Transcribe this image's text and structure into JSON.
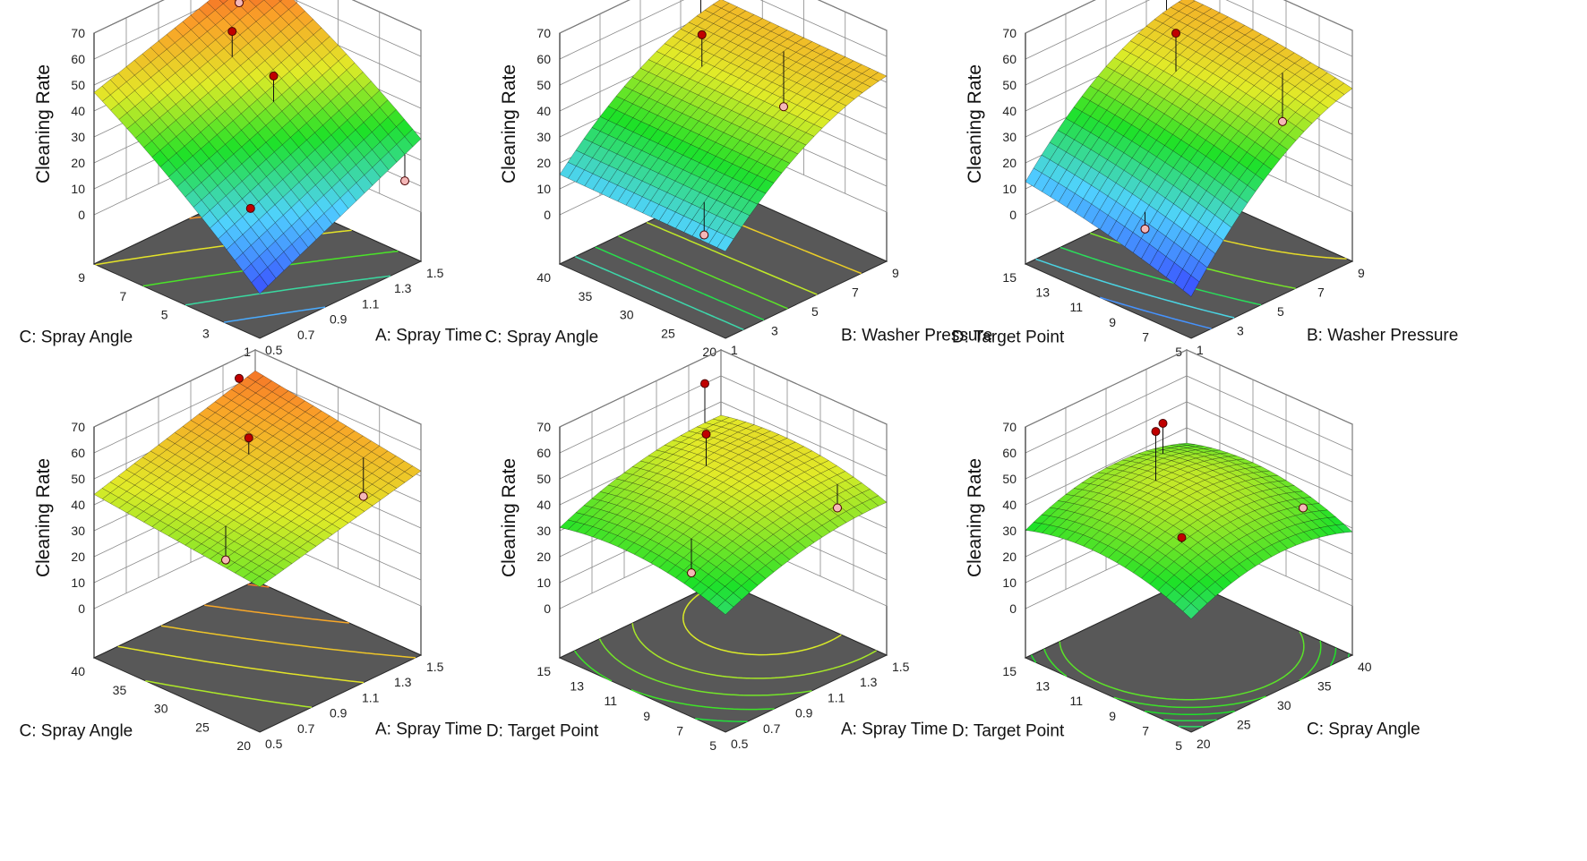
{
  "chart_data": [
    {
      "type": "surface3d",
      "zlabel": "Cleaning Rate",
      "zlim": [
        0,
        70
      ],
      "zticks": [
        0,
        10,
        20,
        30,
        40,
        50,
        60,
        70
      ],
      "x": {
        "label": "A: Spray Time",
        "range": [
          0.5,
          1.5
        ],
        "ticks": [
          "0.5",
          "0.7",
          "0.9",
          "1.1",
          "1.3",
          "1.5"
        ]
      },
      "y": {
        "label": "C: Spray Angle",
        "range": [
          1,
          9
        ],
        "ticks": [
          "1",
          "3",
          "5",
          "7",
          "9"
        ]
      },
      "surface": {
        "c00": 0,
        "c10": 30,
        "c01": 48,
        "c11": 68,
        "qx": 0,
        "qy": 6
      },
      "points": [
        [
          1.4,
          9,
          55
        ],
        [
          1.1,
          7,
          60
        ],
        [
          1.1,
          5,
          50
        ],
        [
          0.7,
          3,
          18
        ],
        [
          1.4,
          1,
          15
        ]
      ]
    },
    {
      "type": "surface3d",
      "zlabel": "Cleaning Rate",
      "zlim": [
        0,
        70
      ],
      "zticks": [
        0,
        10,
        20,
        30,
        40,
        50,
        60,
        70
      ],
      "x": {
        "label": "B: Washer Pressure",
        "range": [
          1,
          9
        ],
        "ticks": [
          "1",
          "3",
          "5",
          "7",
          "9"
        ]
      },
      "y": {
        "label": "C: Spray Angle",
        "range": [
          20,
          40
        ],
        "ticks": [
          "20",
          "25",
          "30",
          "35",
          "40"
        ]
      },
      "surface": {
        "c00": 20,
        "c10": 55,
        "c01": 21,
        "c11": 56,
        "qx": 18,
        "qy": 0
      },
      "points": [
        [
          8,
          40,
          65
        ],
        [
          6,
          35,
          58
        ],
        [
          8,
          30,
          30
        ],
        [
          2,
          25,
          10
        ]
      ]
    },
    {
      "type": "surface3d",
      "zlabel": "Cleaning Rate",
      "zlim": [
        0,
        70
      ],
      "zticks": [
        0,
        10,
        20,
        30,
        40,
        50,
        60,
        70
      ],
      "x": {
        "label": "B: Washer Pressure",
        "range": [
          1,
          9
        ],
        "ticks": [
          "1",
          "3",
          "5",
          "7",
          "9"
        ]
      },
      "y": {
        "label": "D: Target Point",
        "range": [
          5,
          15
        ],
        "ticks": [
          "5",
          "7",
          "9",
          "11",
          "13",
          "15"
        ]
      },
      "surface": {
        "c00": 5,
        "c10": 52,
        "c01": 20,
        "c11": 58,
        "qx": 22,
        "qy": 4
      },
      "points": [
        [
          8,
          15,
          68
        ],
        [
          6,
          12,
          60
        ],
        [
          8,
          8,
          30
        ],
        [
          2,
          9,
          8
        ]
      ]
    },
    {
      "type": "surface3d",
      "zlabel": "Cleaning Rate",
      "zlim": [
        0,
        70
      ],
      "zticks": [
        0,
        10,
        20,
        30,
        40,
        50,
        60,
        70
      ],
      "x": {
        "label": "A: Spray Time",
        "range": [
          0.5,
          1.5
        ],
        "ticks": [
          "0.5",
          "0.7",
          "0.9",
          "1.1",
          "1.3",
          "1.5"
        ]
      },
      "y": {
        "label": "C: Spray Angle",
        "range": [
          20,
          40
        ],
        "ticks": [
          "20",
          "25",
          "30",
          "35",
          "40"
        ]
      },
      "surface": {
        "c00": 37,
        "c10": 52,
        "c01": 44,
        "c11": 62,
        "qx": 0,
        "qy": 0
      },
      "points": [
        [
          1.4,
          40,
          62
        ],
        [
          1.1,
          33,
          58
        ],
        [
          1.4,
          25,
          38
        ],
        [
          0.7,
          28,
          30
        ]
      ]
    },
    {
      "type": "surface3d",
      "zlabel": "Cleaning Rate",
      "zlim": [
        0,
        70
      ],
      "zticks": [
        0,
        10,
        20,
        30,
        40,
        50,
        60,
        70
      ],
      "x": {
        "label": "A: Spray Time",
        "range": [
          0.5,
          1.5
        ],
        "ticks": [
          "0.5",
          "0.7",
          "0.9",
          "1.1",
          "1.3",
          "1.5"
        ]
      },
      "y": {
        "label": "D: Target Point",
        "range": [
          5,
          15
        ],
        "ticks": [
          "5",
          "7",
          "9",
          "11",
          "13",
          "15"
        ]
      },
      "surface": {
        "c00": 33,
        "c10": 45,
        "c01": 36,
        "c11": 48,
        "qx": 10,
        "qy": 12
      },
      "points": [
        [
          1.4,
          15,
          60
        ],
        [
          1.1,
          12,
          58
        ],
        [
          1.4,
          7,
          35
        ],
        [
          0.7,
          9,
          25
        ]
      ]
    },
    {
      "type": "surface3d",
      "zlabel": "Cleaning Rate",
      "zlim": [
        0,
        70
      ],
      "zticks": [
        0,
        10,
        20,
        30,
        40,
        50,
        60,
        70
      ],
      "x": {
        "label": "C: Spray Angle",
        "range": [
          20,
          40
        ],
        "ticks": [
          "20",
          "25",
          "30",
          "35",
          "40"
        ]
      },
      "y": {
        "label": "D: Target Point",
        "range": [
          5,
          15
        ],
        "ticks": [
          "5",
          "7",
          "9",
          "11",
          "13",
          "15"
        ]
      },
      "surface": {
        "c00": 35,
        "c10": 36,
        "c01": 38,
        "c11": 39,
        "qx": 18,
        "qy": 16
      },
      "points": [
        [
          30,
          12,
          62
        ],
        [
          35,
          14,
          52
        ],
        [
          25,
          8,
          40
        ],
        [
          38,
          7,
          35
        ]
      ]
    }
  ]
}
